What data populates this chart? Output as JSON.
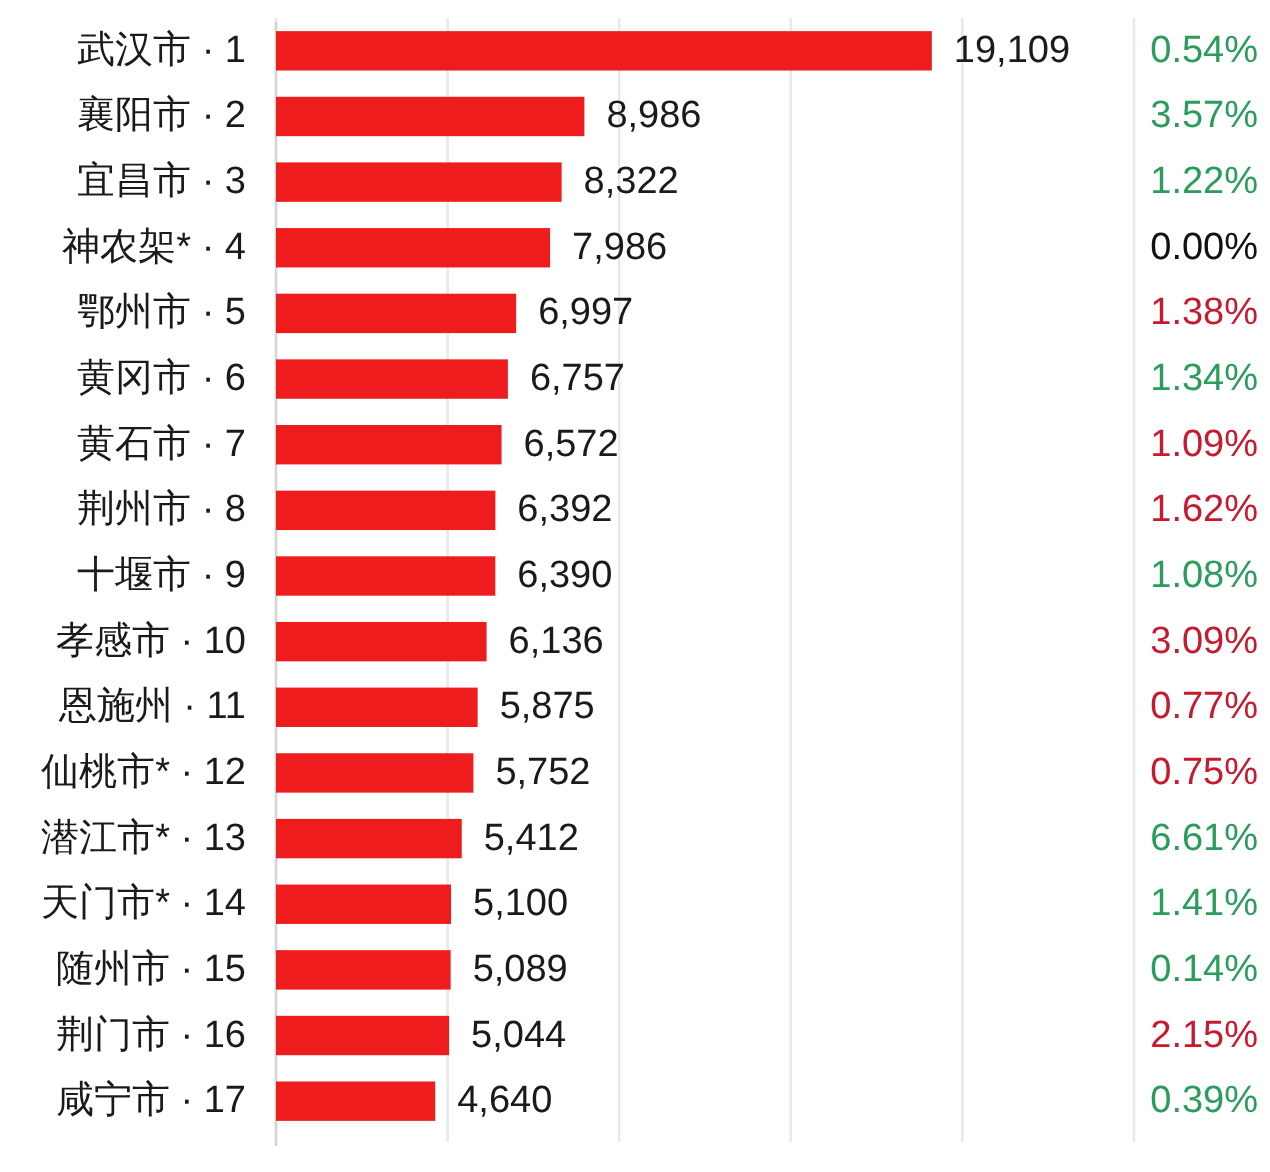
{
  "chart_data": {
    "type": "bar",
    "orientation": "horizontal",
    "categories": [
      "武汉市 · 1",
      "襄阳市 · 2",
      "宜昌市 · 3",
      "神农架* · 4",
      "鄂州市 · 5",
      "黄冈市 · 6",
      "黄石市 · 7",
      "荆州市 · 8",
      "十堰市 · 9",
      "孝感市 · 10",
      "恩施州 · 11",
      "仙桃市* · 12",
      "潜江市* · 13",
      "天门市* · 14",
      "随州市 · 15",
      "荆门市 · 16",
      "咸宁市 · 17"
    ],
    "values": [
      19109,
      8986,
      8322,
      7986,
      6997,
      6757,
      6572,
      6392,
      6390,
      6136,
      5875,
      5752,
      5412,
      5100,
      5089,
      5044,
      4640
    ],
    "value_labels": [
      "19,109",
      "8,986",
      "8,322",
      "7,986",
      "6,997",
      "6,757",
      "6,572",
      "6,392",
      "6,390",
      "6,136",
      "5,875",
      "5,752",
      "5,412",
      "5,100",
      "5,089",
      "5,044",
      "4,640"
    ],
    "color": "#ee1c1c",
    "xlim": [
      0,
      25000
    ],
    "xticks": [
      {
        "value": 0,
        "label": null
      },
      {
        "value": 5000,
        "label": null
      },
      {
        "value": 10000,
        "label": null
      },
      {
        "value": 15000,
        "label": null
      },
      {
        "value": 20000,
        "label": null
      },
      {
        "value": 25000,
        "label": null
      }
    ],
    "grid": "x",
    "tick_labels": "y",
    "annotations": [
      "0.54%",
      "3.57%",
      "1.22%",
      "0.00%",
      "1.38%",
      "1.34%",
      "1.09%",
      "1.62%",
      "1.08%",
      "3.09%",
      "0.77%",
      "0.75%",
      "6.61%",
      "1.41%",
      "0.14%",
      "2.15%",
      "0.39%"
    ]
  }
}
